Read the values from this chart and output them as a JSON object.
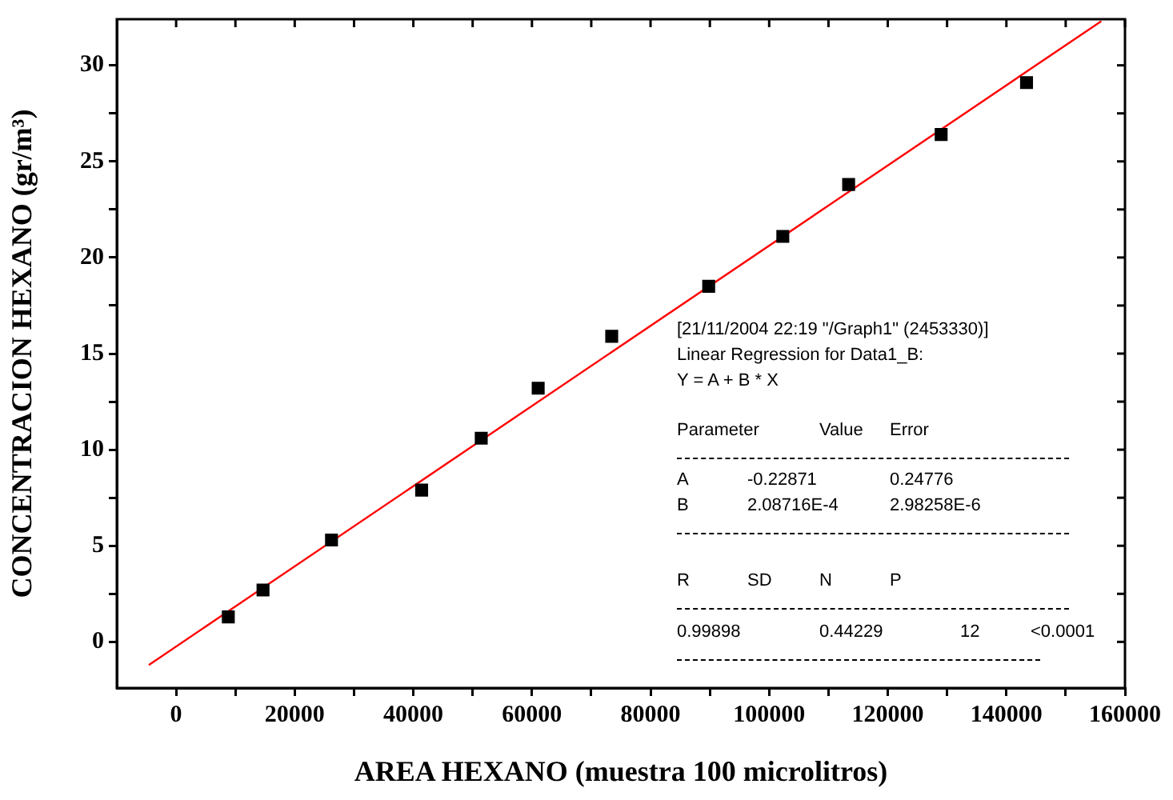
{
  "chart_data": {
    "type": "scatter",
    "xlabel": "AREA HEXANO (muestra 100 microlitros)",
    "ylabel": "CONCENTRACION HEXANO (gr/m³)",
    "xlim": [
      -10000,
      160000
    ],
    "ylim": [
      -2.4,
      32.4
    ],
    "xticks": [
      0,
      {
        "value": 10000,
        "label": null
      },
      20000,
      {
        "value": 30000,
        "label": null
      },
      40000,
      {
        "value": 50000,
        "label": null
      },
      60000,
      {
        "value": 70000,
        "label": null
      },
      80000,
      {
        "value": 90000,
        "label": null
      },
      100000,
      {
        "value": 110000,
        "label": null
      },
      120000,
      {
        "value": 130000,
        "label": null
      },
      140000,
      {
        "value": 150000,
        "label": null
      },
      160000
    ],
    "yticks": [
      0,
      {
        "value": 2.5,
        "label": null
      },
      5,
      {
        "value": 7.5,
        "label": null
      },
      10,
      {
        "value": 12.5,
        "label": null
      },
      15,
      {
        "value": 17.5,
        "label": null
      },
      20,
      {
        "value": 22.5,
        "label": null
      },
      25,
      {
        "value": 27.5,
        "label": null
      },
      30
    ],
    "grid": false,
    "legend": false,
    "series": [
      {
        "type": "scatter",
        "color": "#000000",
        "marker": "square",
        "x": [
          8800,
          14650,
          26200,
          41400,
          51450,
          61050,
          73450,
          89800,
          102300,
          113400,
          129000,
          143400
        ],
        "values": [
          1.3,
          2.7,
          5.3,
          7.9,
          10.6,
          13.2,
          15.9,
          18.5,
          21.1,
          23.8,
          26.4,
          29.1
        ]
      },
      {
        "type": "line",
        "color": "#ff0000",
        "marker": "none",
        "x": [
          -4600,
          156000
        ],
        "values": [
          -1.2,
          32.3
        ]
      }
    ],
    "annotations": [
      "[21/11/2004 22:19 \"/Graph1\" (2453330)]",
      "Linear Regression for Data1_B:",
      "Y = A + B * X",
      "Parameter",
      "Value",
      "Error",
      "A",
      "-0.22871",
      "0.24776",
      "B",
      "2.08716E-4",
      "2.98258E-6",
      "R",
      "SD",
      "N",
      "P",
      "0.99898",
      "0.44229",
      "12",
      "<0.0001"
    ]
  }
}
